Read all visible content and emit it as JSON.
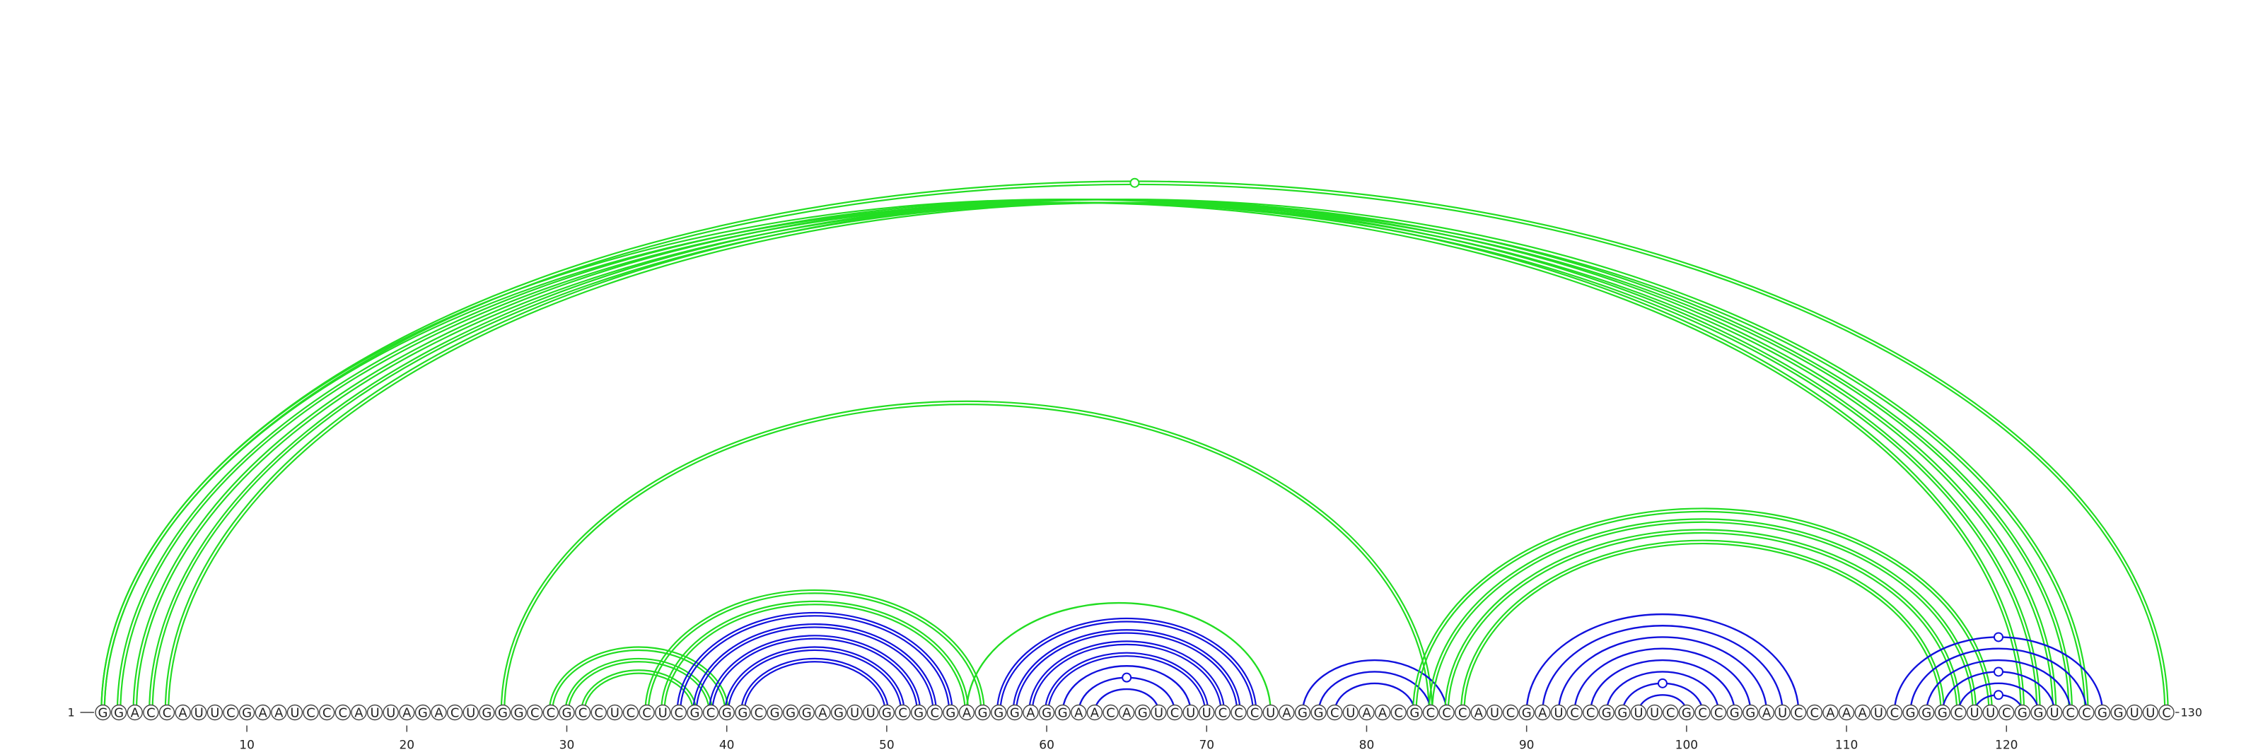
{
  "sequence": "GGACCAUUCGAAUCCCAUUAGACUGGGCCGCCUCCUCGCGGCGGGAGUUGCGCGAGGGAGGAACAGUCUUCCCUAGGCUAACGCCCAUCGAUCCGGUUCGCCGGAUCCAAAUCGGGCUUCGGUCCGGUUC",
  "start_label": "1",
  "end_label": "130",
  "tick_values": [
    "10",
    "20",
    "30",
    "40",
    "50",
    "60",
    "70",
    "80",
    "90",
    "100",
    "110",
    "120"
  ],
  "colors": {
    "green": "#22dd22",
    "blue": "#1111dd"
  },
  "arcs": [
    {
      "i": 1,
      "j": 121,
      "color": "green",
      "double": true
    },
    {
      "i": 2,
      "j": 122,
      "color": "green",
      "double": true
    },
    {
      "i": 3,
      "j": 123,
      "color": "green",
      "double": true
    },
    {
      "i": 4,
      "j": 124,
      "color": "green",
      "double": true
    },
    {
      "i": 5,
      "j": 125,
      "color": "green",
      "double": true
    },
    {
      "i": 1,
      "j": 130,
      "color": "green",
      "double": true,
      "marker": true
    },
    {
      "i": 26,
      "j": 84,
      "color": "green",
      "double": true
    },
    {
      "i": 29,
      "j": 40,
      "color": "green",
      "double": true
    },
    {
      "i": 30,
      "j": 39,
      "color": "green",
      "double": true
    },
    {
      "i": 31,
      "j": 38,
      "color": "green",
      "double": true
    },
    {
      "i": 35,
      "j": 56,
      "color": "green",
      "double": true
    },
    {
      "i": 36,
      "j": 55,
      "color": "green",
      "double": true
    },
    {
      "i": 37,
      "j": 54,
      "color": "blue",
      "double": true
    },
    {
      "i": 38,
      "j": 53,
      "color": "blue",
      "double": true
    },
    {
      "i": 39,
      "j": 52,
      "color": "blue",
      "double": true
    },
    {
      "i": 40,
      "j": 51,
      "color": "blue",
      "double": true
    },
    {
      "i": 41,
      "j": 50,
      "color": "blue",
      "double": true
    },
    {
      "i": 55,
      "j": 74,
      "color": "green",
      "double": false
    },
    {
      "i": 57,
      "j": 73,
      "color": "blue",
      "double": true
    },
    {
      "i": 58,
      "j": 72,
      "color": "blue",
      "double": true
    },
    {
      "i": 59,
      "j": 71,
      "color": "blue",
      "double": true
    },
    {
      "i": 60,
      "j": 70,
      "color": "blue",
      "double": true
    },
    {
      "i": 61,
      "j": 69,
      "color": "blue",
      "double": false
    },
    {
      "i": 62,
      "j": 68,
      "color": "blue",
      "double": false,
      "marker": true
    },
    {
      "i": 63,
      "j": 67,
      "color": "blue",
      "double": false
    },
    {
      "i": 76,
      "j": 85,
      "color": "blue",
      "double": false
    },
    {
      "i": 77,
      "j": 84,
      "color": "blue",
      "double": false
    },
    {
      "i": 78,
      "j": 83,
      "color": "blue",
      "double": false
    },
    {
      "i": 83,
      "j": 119,
      "color": "green",
      "double": true
    },
    {
      "i": 84,
      "j": 118,
      "color": "green",
      "double": true
    },
    {
      "i": 85,
      "j": 117,
      "color": "green",
      "double": true
    },
    {
      "i": 86,
      "j": 116,
      "color": "green",
      "double": true
    },
    {
      "i": 90,
      "j": 107,
      "color": "blue",
      "double": false
    },
    {
      "i": 91,
      "j": 106,
      "color": "blue",
      "double": false
    },
    {
      "i": 92,
      "j": 105,
      "color": "blue",
      "double": false
    },
    {
      "i": 93,
      "j": 104,
      "color": "blue",
      "double": false
    },
    {
      "i": 94,
      "j": 103,
      "color": "blue",
      "double": false
    },
    {
      "i": 95,
      "j": 102,
      "color": "blue",
      "double": false
    },
    {
      "i": 96,
      "j": 101,
      "color": "blue",
      "double": false,
      "marker": true
    },
    {
      "i": 97,
      "j": 100,
      "color": "blue",
      "double": false
    },
    {
      "i": 113,
      "j": 126,
      "color": "blue",
      "double": false,
      "marker": true
    },
    {
      "i": 114,
      "j": 125,
      "color": "blue",
      "double": false
    },
    {
      "i": 115,
      "j": 124,
      "color": "blue",
      "double": false
    },
    {
      "i": 116,
      "j": 123,
      "color": "blue",
      "double": false,
      "marker": true
    },
    {
      "i": 117,
      "j": 122,
      "color": "blue",
      "double": false
    },
    {
      "i": 118,
      "j": 121,
      "color": "blue",
      "double": false,
      "marker": true
    }
  ]
}
